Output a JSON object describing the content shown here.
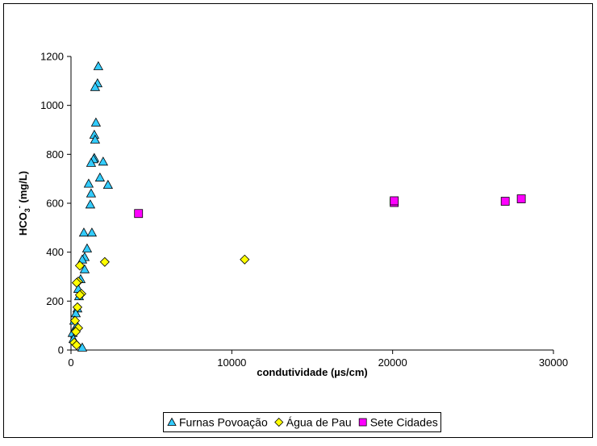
{
  "chart_data": {
    "type": "scatter",
    "title": "",
    "xlabel": "condutividade (µs/cm)",
    "ylabel_parts": {
      "main": "HCO",
      "sub": "3",
      "sup": "-",
      "unit": " (mg/L)"
    },
    "xlim": [
      0,
      30000
    ],
    "ylim": [
      0,
      1200
    ],
    "x_ticks": [
      0,
      10000,
      20000,
      30000
    ],
    "y_ticks": [
      0,
      200,
      400,
      600,
      800,
      1000,
      1200
    ],
    "x_tick_labels": [
      "0",
      "10000",
      "20000",
      "30000"
    ],
    "y_tick_labels": [
      "0",
      "200",
      "400",
      "600",
      "800",
      "1000",
      "1200"
    ],
    "grid": false,
    "legend_position": "bottom",
    "series": [
      {
        "name": "Furnas Povoação",
        "marker": "triangle",
        "color": "#33CCFF",
        "points": [
          [
            1700,
            1160
          ],
          [
            1650,
            1090
          ],
          [
            1500,
            1075
          ],
          [
            1550,
            930
          ],
          [
            1450,
            880
          ],
          [
            1500,
            860
          ],
          [
            1450,
            785
          ],
          [
            1400,
            780
          ],
          [
            2000,
            770
          ],
          [
            1250,
            765
          ],
          [
            1800,
            705
          ],
          [
            1100,
            680
          ],
          [
            2300,
            675
          ],
          [
            1250,
            640
          ],
          [
            1200,
            595
          ],
          [
            800,
            480
          ],
          [
            1300,
            480
          ],
          [
            1000,
            415
          ],
          [
            850,
            380
          ],
          [
            700,
            370
          ],
          [
            850,
            330
          ],
          [
            600,
            290
          ],
          [
            450,
            250
          ],
          [
            500,
            220
          ],
          [
            400,
            170
          ],
          [
            300,
            150
          ],
          [
            200,
            120
          ],
          [
            350,
            100
          ],
          [
            100,
            70
          ],
          [
            150,
            45
          ],
          [
            700,
            10
          ]
        ]
      },
      {
        "name": "Água de Pau",
        "marker": "diamond",
        "color": "#FFFF00",
        "points": [
          [
            10800,
            370
          ],
          [
            2100,
            360
          ],
          [
            550,
            345
          ],
          [
            450,
            280
          ],
          [
            350,
            275
          ],
          [
            650,
            230
          ],
          [
            550,
            225
          ],
          [
            400,
            175
          ],
          [
            250,
            120
          ],
          [
            450,
            90
          ],
          [
            300,
            75
          ],
          [
            200,
            30
          ],
          [
            350,
            20
          ]
        ]
      },
      {
        "name": "Sete Cidades",
        "marker": "square",
        "color": "#FF00FF",
        "points": [
          [
            4200,
            558
          ],
          [
            20100,
            603
          ],
          [
            20100,
            610
          ],
          [
            27000,
            608
          ],
          [
            28000,
            618
          ]
        ]
      }
    ]
  }
}
